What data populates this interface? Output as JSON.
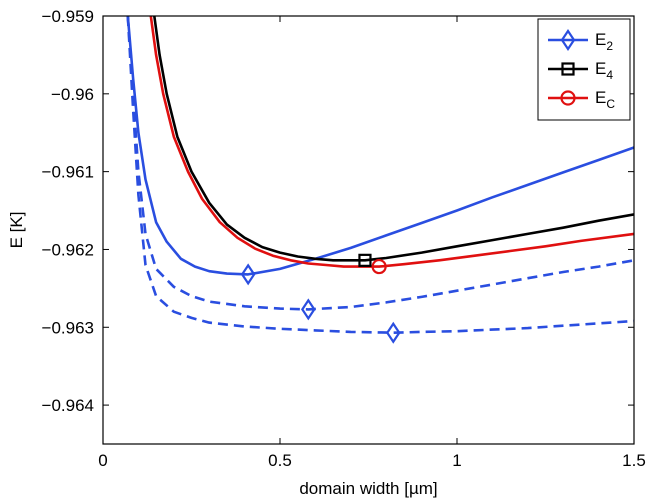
{
  "chart_data": {
    "type": "line",
    "title": "",
    "xlabel": "domain width [µm]",
    "ylabel": "E [K]",
    "xlim": [
      0,
      1.5
    ],
    "ylim": [
      -0.9645,
      -0.959
    ],
    "xticks": [
      0,
      0.5,
      1,
      1.5
    ],
    "xtick_labels": [
      "0",
      "0.5",
      "1",
      "1.5"
    ],
    "yticks": [
      -0.959,
      -0.96,
      -0.961,
      -0.962,
      -0.963,
      -0.964
    ],
    "ytick_labels": [
      "−0.959",
      "−0.96",
      "−0.961",
      "−0.962",
      "−0.963",
      "−0.964"
    ],
    "legend": {
      "position": "top-right",
      "entries": [
        {
          "base": "E",
          "sub": "2",
          "color": "#2a4ee0",
          "marker": "diamond"
        },
        {
          "base": "E",
          "sub": "4",
          "color": "#000000",
          "marker": "square"
        },
        {
          "base": "E",
          "sub": "C",
          "color": "#e01010",
          "marker": "circle"
        }
      ]
    },
    "series": [
      {
        "name": "E_2 (solid)",
        "color": "#2a4ee0",
        "style": "solid",
        "x": [
          0.07,
          0.085,
          0.1,
          0.12,
          0.15,
          0.18,
          0.22,
          0.26,
          0.3,
          0.35,
          0.41,
          0.5,
          0.6,
          0.7,
          0.8,
          0.9,
          1.0,
          1.1,
          1.2,
          1.3,
          1.4,
          1.5
        ],
        "y": [
          -0.959,
          -0.9598,
          -0.9605,
          -0.9611,
          -0.96165,
          -0.9619,
          -0.96212,
          -0.96222,
          -0.96228,
          -0.96231,
          -0.96232,
          -0.96225,
          -0.96212,
          -0.96198,
          -0.96182,
          -0.96166,
          -0.9615,
          -0.96133,
          -0.96117,
          -0.96101,
          -0.96085,
          -0.96069
        ]
      },
      {
        "name": "E_2 (dashed, upper)",
        "color": "#2a4ee0",
        "style": "dashed",
        "x": [
          0.07,
          0.085,
          0.1,
          0.12,
          0.15,
          0.2,
          0.25,
          0.3,
          0.4,
          0.5,
          0.58,
          0.7,
          0.8,
          0.9,
          1.0,
          1.1,
          1.2,
          1.3,
          1.4,
          1.5
        ],
        "y": [
          -0.959,
          -0.96,
          -0.961,
          -0.9618,
          -0.96225,
          -0.96248,
          -0.9626,
          -0.96267,
          -0.96273,
          -0.96276,
          -0.96277,
          -0.96274,
          -0.96268,
          -0.96261,
          -0.96253,
          -0.96245,
          -0.96237,
          -0.96229,
          -0.96222,
          -0.96214
        ]
      },
      {
        "name": "E_2 (dashed, lower)",
        "color": "#2a4ee0",
        "style": "dashed",
        "x": [
          0.07,
          0.085,
          0.1,
          0.12,
          0.15,
          0.2,
          0.25,
          0.3,
          0.4,
          0.5,
          0.6,
          0.7,
          0.82,
          0.9,
          1.0,
          1.1,
          1.2,
          1.3,
          1.4,
          1.5
        ],
        "y": [
          -0.959,
          -0.9602,
          -0.9613,
          -0.9622,
          -0.9626,
          -0.9628,
          -0.96288,
          -0.96294,
          -0.96299,
          -0.96302,
          -0.96304,
          -0.96306,
          -0.96307,
          -0.96306,
          -0.96305,
          -0.96303,
          -0.96301,
          -0.96298,
          -0.96295,
          -0.96292
        ]
      },
      {
        "name": "E_4",
        "color": "#000000",
        "style": "solid",
        "x": [
          0.145,
          0.16,
          0.18,
          0.21,
          0.25,
          0.3,
          0.35,
          0.4,
          0.45,
          0.5,
          0.55,
          0.6,
          0.65,
          0.7,
          0.74,
          0.8,
          0.9,
          1.0,
          1.1,
          1.2,
          1.3,
          1.4,
          1.5
        ],
        "y": [
          -0.959,
          -0.9595,
          -0.96,
          -0.96055,
          -0.961,
          -0.9614,
          -0.96168,
          -0.96185,
          -0.96197,
          -0.96204,
          -0.96209,
          -0.96212,
          -0.96214,
          -0.96214,
          -0.96214,
          -0.96211,
          -0.96204,
          -0.96196,
          -0.96188,
          -0.9618,
          -0.96172,
          -0.96163,
          -0.96155
        ]
      },
      {
        "name": "E_C",
        "color": "#e01010",
        "style": "solid",
        "x": [
          0.135,
          0.15,
          0.17,
          0.2,
          0.24,
          0.28,
          0.33,
          0.38,
          0.43,
          0.48,
          0.53,
          0.58,
          0.63,
          0.68,
          0.73,
          0.78,
          0.85,
          0.95,
          1.05,
          1.15,
          1.25,
          1.35,
          1.5
        ],
        "y": [
          -0.959,
          -0.9595,
          -0.96,
          -0.96055,
          -0.961,
          -0.96135,
          -0.96165,
          -0.96185,
          -0.96199,
          -0.96208,
          -0.96214,
          -0.96218,
          -0.9622,
          -0.96222,
          -0.96222,
          -0.96222,
          -0.96219,
          -0.96214,
          -0.96208,
          -0.96202,
          -0.96196,
          -0.96189,
          -0.9618
        ]
      }
    ],
    "markers": [
      {
        "series": "E_2 (solid)",
        "shape": "diamond",
        "color": "#2a4ee0",
        "x": 0.41,
        "y": -0.96232
      },
      {
        "series": "E_2 (dashed, upper)",
        "shape": "diamond",
        "color": "#2a4ee0",
        "x": 0.58,
        "y": -0.96277
      },
      {
        "series": "E_2 (dashed, lower)",
        "shape": "diamond",
        "color": "#2a4ee0",
        "x": 0.82,
        "y": -0.96307
      },
      {
        "series": "E_4",
        "shape": "square",
        "color": "#000000",
        "x": 0.74,
        "y": -0.96214
      },
      {
        "series": "E_C",
        "shape": "circle",
        "color": "#e01010",
        "x": 0.78,
        "y": -0.96222
      }
    ]
  }
}
